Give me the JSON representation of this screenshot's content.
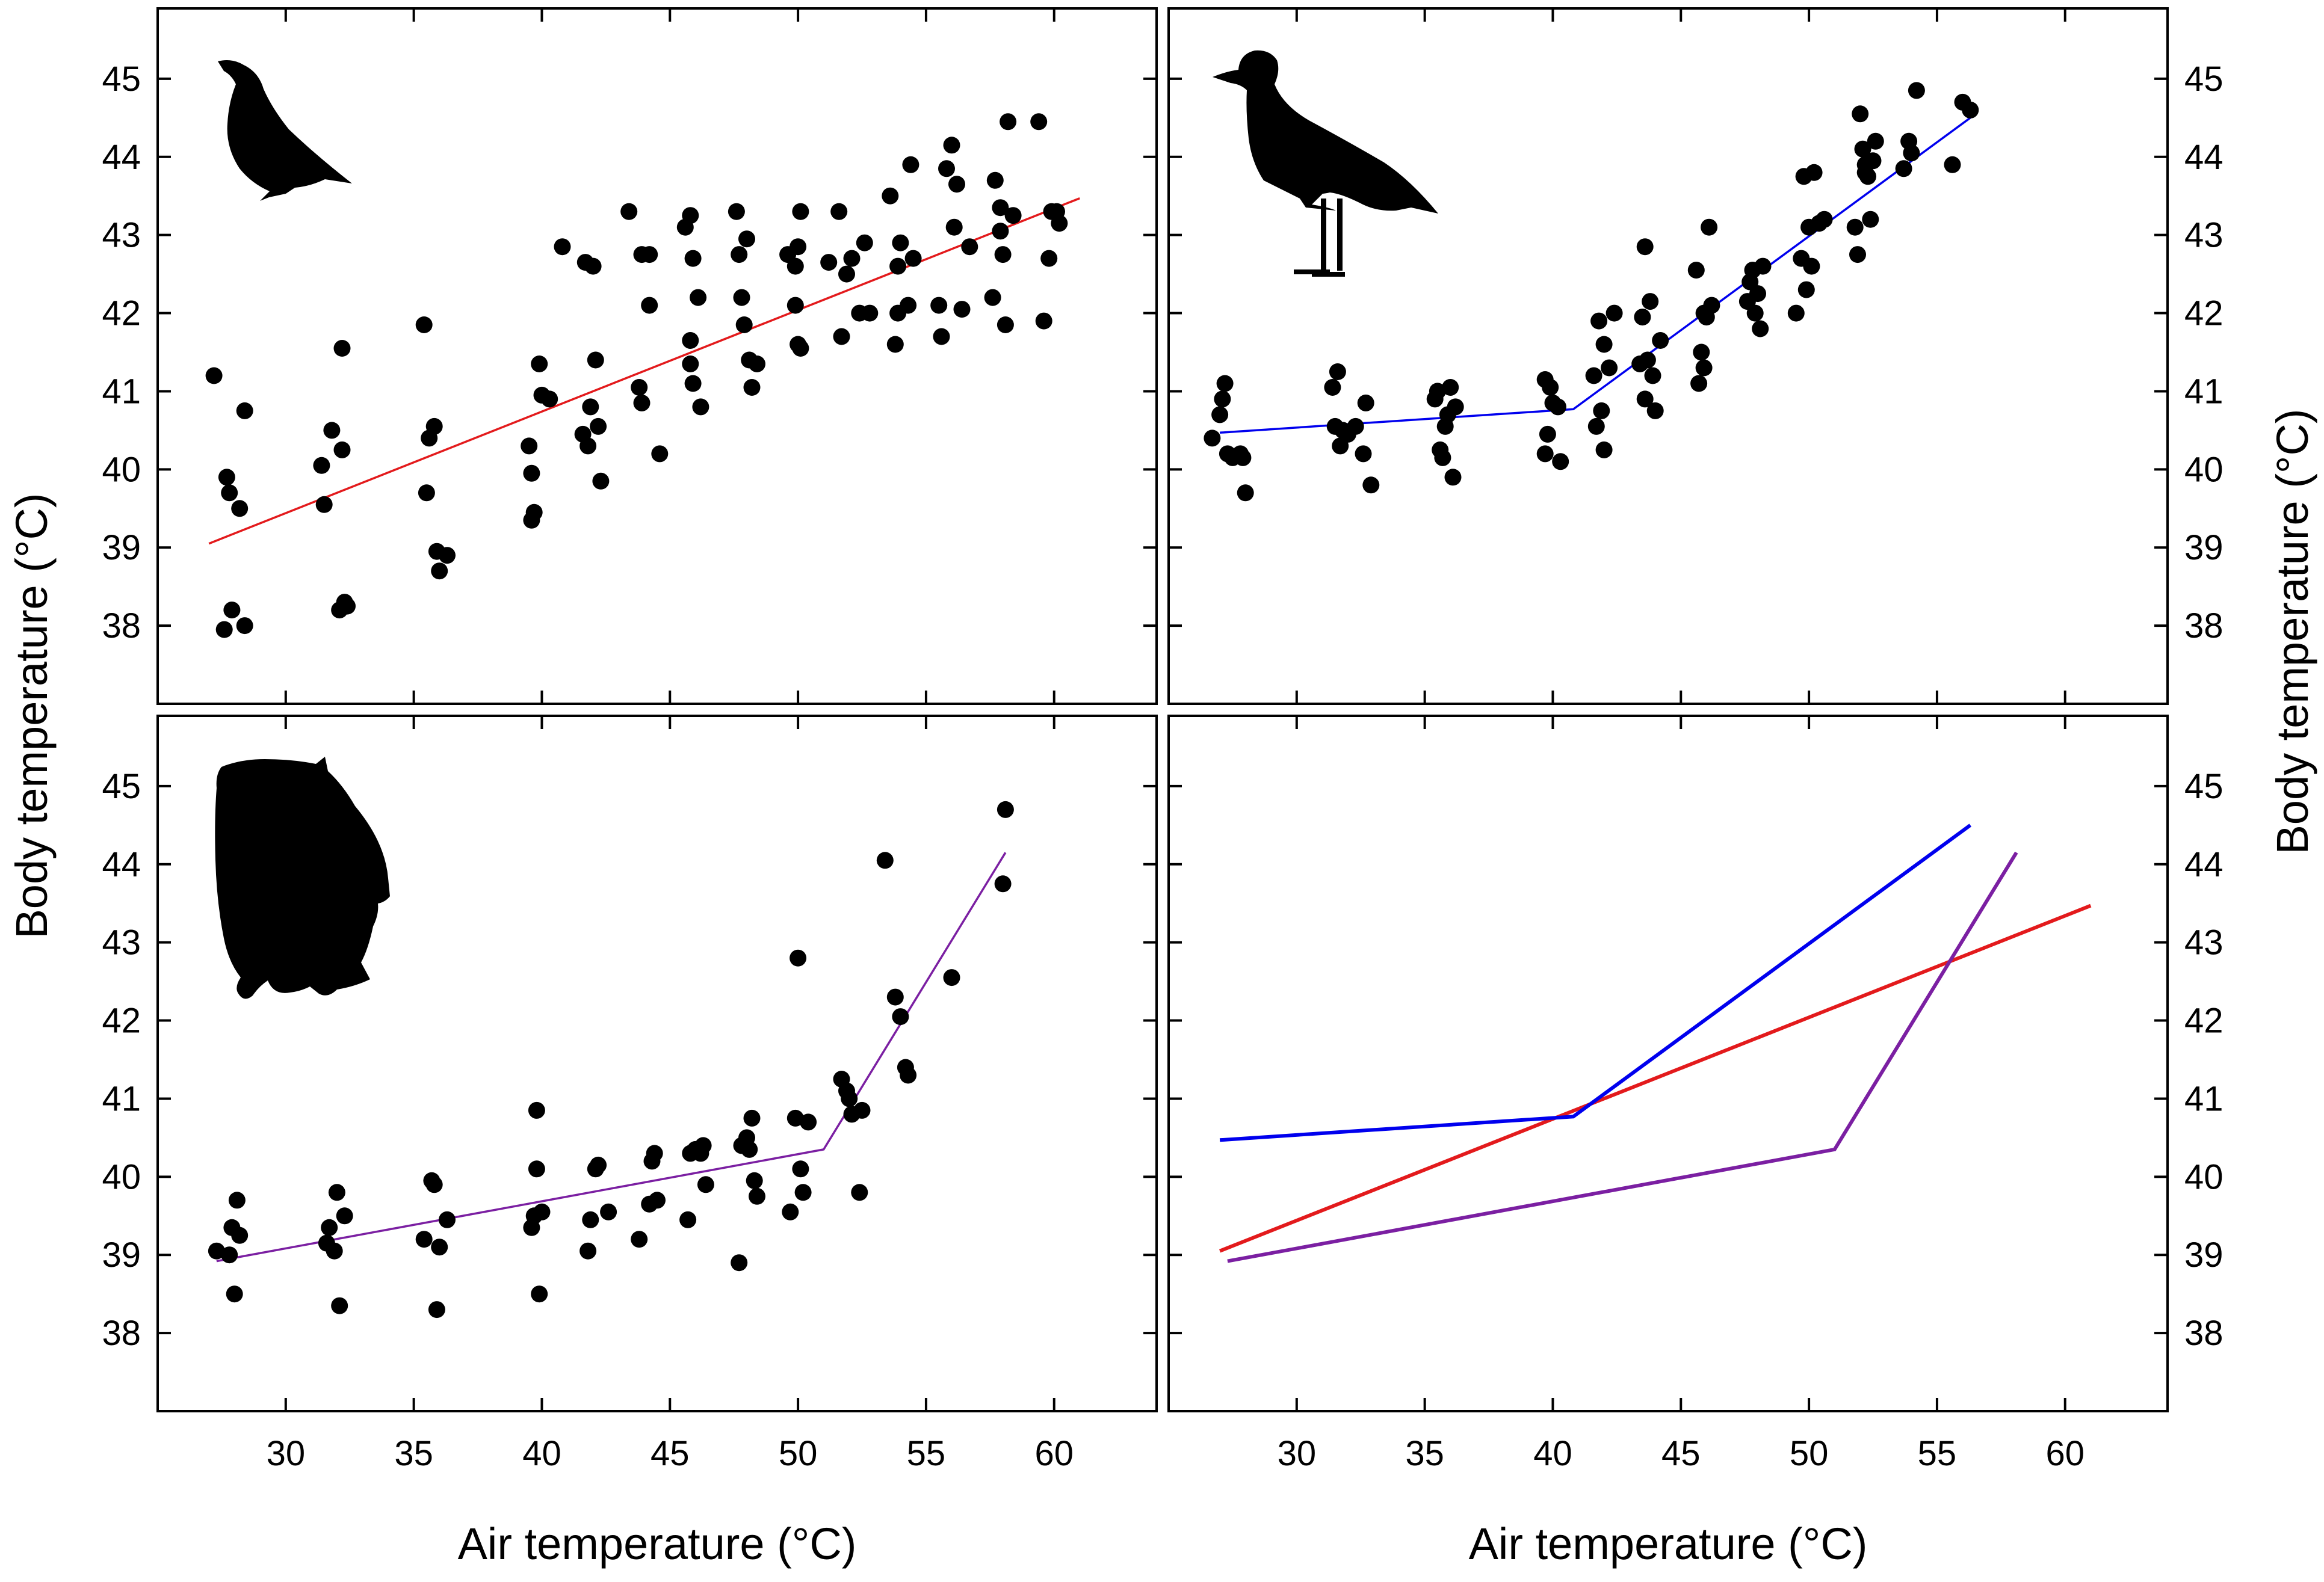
{
  "chart_data": [
    {
      "type": "scatter",
      "panel": "top-left",
      "silhouette": "grouse-bird-icon",
      "xlabel": "",
      "ylabel": "Body temperature (°C)",
      "xlim": [
        25,
        64
      ],
      "ylim": [
        37,
        45.9
      ],
      "xticks": [
        "30",
        "35",
        "40",
        "45",
        "50",
        "55",
        "60"
      ],
      "yticks": [
        "38",
        "39",
        "40",
        "41",
        "42",
        "43",
        "44",
        "45"
      ],
      "fit": {
        "name": "grouse",
        "color": "#e31a1c",
        "x": [
          27,
          61
        ],
        "y": [
          39.05,
          43.47
        ]
      },
      "points": [
        [
          27.2,
          41.2
        ],
        [
          27.7,
          39.9
        ],
        [
          27.8,
          39.7
        ],
        [
          28.2,
          39.5
        ],
        [
          28.4,
          40.75
        ],
        [
          27.6,
          37.95
        ],
        [
          27.9,
          38.2
        ],
        [
          28.4,
          38.0
        ],
        [
          31.4,
          40.05
        ],
        [
          31.5,
          39.55
        ],
        [
          31.8,
          40.5
        ],
        [
          32.2,
          41.55
        ],
        [
          32.2,
          40.25
        ],
        [
          32.1,
          38.2
        ],
        [
          32.3,
          38.3
        ],
        [
          32.4,
          38.25
        ],
        [
          35.4,
          41.85
        ],
        [
          35.6,
          40.4
        ],
        [
          35.8,
          40.55
        ],
        [
          35.5,
          39.7
        ],
        [
          35.9,
          38.95
        ],
        [
          36.0,
          38.7
        ],
        [
          36.3,
          38.9
        ],
        [
          39.5,
          40.3
        ],
        [
          39.6,
          39.95
        ],
        [
          39.6,
          39.35
        ],
        [
          39.7,
          39.45
        ],
        [
          39.9,
          41.35
        ],
        [
          40.0,
          40.95
        ],
        [
          40.3,
          40.9
        ],
        [
          40.8,
          42.85
        ],
        [
          41.6,
          40.45
        ],
        [
          41.9,
          40.8
        ],
        [
          41.8,
          40.3
        ],
        [
          41.7,
          42.65
        ],
        [
          42.0,
          42.6
        ],
        [
          42.1,
          41.4
        ],
        [
          42.2,
          40.55
        ],
        [
          42.3,
          39.85
        ],
        [
          43.4,
          43.3
        ],
        [
          43.8,
          41.05
        ],
        [
          43.9,
          40.85
        ],
        [
          44.2,
          42.75
        ],
        [
          44.2,
          42.1
        ],
        [
          44.6,
          40.2
        ],
        [
          43.9,
          42.75
        ],
        [
          45.6,
          43.1
        ],
        [
          45.8,
          43.25
        ],
        [
          45.9,
          42.7
        ],
        [
          45.8,
          41.65
        ],
        [
          45.8,
          41.35
        ],
        [
          45.9,
          41.1
        ],
        [
          46.1,
          42.2
        ],
        [
          46.2,
          40.8
        ],
        [
          47.6,
          43.3
        ],
        [
          47.7,
          42.75
        ],
        [
          47.8,
          42.2
        ],
        [
          48.0,
          42.95
        ],
        [
          47.9,
          41.85
        ],
        [
          48.2,
          41.05
        ],
        [
          48.4,
          41.35
        ],
        [
          48.1,
          41.4
        ],
        [
          49.6,
          42.75
        ],
        [
          49.9,
          42.6
        ],
        [
          49.9,
          42.1
        ],
        [
          50.0,
          41.6
        ],
        [
          50.1,
          41.55
        ],
        [
          50.1,
          43.3
        ],
        [
          50.0,
          42.85
        ],
        [
          51.2,
          42.65
        ],
        [
          51.6,
          43.3
        ],
        [
          51.9,
          42.5
        ],
        [
          51.7,
          41.7
        ],
        [
          52.1,
          42.7
        ],
        [
          52.4,
          42.0
        ],
        [
          52.6,
          42.9
        ],
        [
          52.8,
          42.0
        ],
        [
          53.6,
          43.5
        ],
        [
          53.9,
          42.6
        ],
        [
          53.9,
          42.0
        ],
        [
          53.8,
          41.6
        ],
        [
          54.0,
          42.9
        ],
        [
          54.3,
          42.1
        ],
        [
          54.4,
          43.9
        ],
        [
          54.5,
          42.7
        ],
        [
          55.5,
          42.1
        ],
        [
          55.6,
          41.7
        ],
        [
          55.8,
          43.85
        ],
        [
          56.0,
          44.15
        ],
        [
          56.1,
          43.1
        ],
        [
          56.2,
          43.65
        ],
        [
          56.4,
          42.05
        ],
        [
          56.7,
          42.85
        ],
        [
          57.6,
          42.2
        ],
        [
          57.7,
          43.7
        ],
        [
          57.9,
          43.35
        ],
        [
          57.9,
          43.05
        ],
        [
          58.0,
          42.75
        ],
        [
          58.1,
          41.85
        ],
        [
          58.2,
          44.45
        ],
        [
          58.4,
          43.25
        ],
        [
          59.4,
          44.45
        ],
        [
          59.6,
          41.9
        ],
        [
          59.8,
          42.7
        ],
        [
          59.9,
          43.3
        ],
        [
          60.1,
          43.3
        ],
        [
          60.2,
          43.15
        ]
      ]
    },
    {
      "type": "scatter",
      "panel": "top-right",
      "silhouette": "plover-bird-icon",
      "xlabel": "",
      "ylabel": "Body temperature (°C)",
      "xlim": [
        25,
        64
      ],
      "ylim": [
        37,
        45.9
      ],
      "xticks": [
        "30",
        "35",
        "40",
        "45",
        "50",
        "55",
        "60"
      ],
      "yticks": [
        "38",
        "39",
        "40",
        "41",
        "42",
        "43",
        "44",
        "45"
      ],
      "fit": {
        "name": "plover",
        "color": "#0000ee",
        "x": [
          27,
          40.8,
          56.3
        ],
        "y": [
          40.47,
          40.77,
          44.5
        ]
      },
      "points": [
        [
          26.7,
          40.4
        ],
        [
          27.0,
          40.7
        ],
        [
          27.1,
          40.9
        ],
        [
          27.2,
          41.1
        ],
        [
          27.3,
          40.2
        ],
        [
          27.5,
          40.15
        ],
        [
          27.8,
          40.2
        ],
        [
          27.9,
          40.15
        ],
        [
          28.0,
          39.7
        ],
        [
          31.4,
          41.05
        ],
        [
          31.5,
          40.55
        ],
        [
          31.6,
          41.25
        ],
        [
          31.7,
          40.3
        ],
        [
          31.8,
          40.5
        ],
        [
          32.0,
          40.45
        ],
        [
          32.3,
          40.55
        ],
        [
          32.6,
          40.2
        ],
        [
          32.7,
          40.85
        ],
        [
          32.9,
          39.8
        ],
        [
          35.4,
          40.9
        ],
        [
          35.5,
          41.0
        ],
        [
          35.6,
          40.25
        ],
        [
          35.7,
          40.15
        ],
        [
          35.8,
          40.55
        ],
        [
          35.9,
          40.7
        ],
        [
          36.0,
          41.05
        ],
        [
          36.1,
          39.9
        ],
        [
          36.2,
          40.8
        ],
        [
          39.7,
          41.15
        ],
        [
          39.7,
          40.2
        ],
        [
          39.8,
          40.45
        ],
        [
          39.9,
          41.05
        ],
        [
          40.0,
          40.85
        ],
        [
          40.2,
          40.8
        ],
        [
          40.3,
          40.1
        ],
        [
          41.6,
          41.2
        ],
        [
          41.7,
          40.55
        ],
        [
          41.8,
          41.9
        ],
        [
          41.9,
          40.75
        ],
        [
          42.0,
          41.6
        ],
        [
          42.0,
          40.25
        ],
        [
          42.2,
          41.3
        ],
        [
          42.4,
          42.0
        ],
        [
          43.4,
          41.35
        ],
        [
          43.5,
          41.95
        ],
        [
          43.6,
          42.85
        ],
        [
          43.7,
          41.4
        ],
        [
          43.8,
          42.15
        ],
        [
          43.9,
          41.2
        ],
        [
          44.0,
          40.75
        ],
        [
          43.6,
          40.9
        ],
        [
          44.2,
          41.65
        ],
        [
          45.6,
          42.55
        ],
        [
          45.7,
          41.1
        ],
        [
          45.8,
          41.5
        ],
        [
          45.9,
          42.0
        ],
        [
          45.9,
          41.3
        ],
        [
          46.0,
          41.95
        ],
        [
          46.1,
          43.1
        ],
        [
          46.2,
          42.1
        ],
        [
          47.6,
          42.15
        ],
        [
          47.7,
          42.4
        ],
        [
          47.8,
          42.55
        ],
        [
          47.9,
          42.0
        ],
        [
          48.0,
          42.25
        ],
        [
          48.1,
          41.8
        ],
        [
          48.2,
          42.6
        ],
        [
          49.5,
          42.0
        ],
        [
          49.7,
          42.7
        ],
        [
          49.8,
          43.75
        ],
        [
          49.9,
          42.3
        ],
        [
          50.0,
          43.1
        ],
        [
          50.1,
          42.6
        ],
        [
          50.2,
          43.8
        ],
        [
          50.4,
          43.15
        ],
        [
          50.6,
          43.2
        ],
        [
          51.8,
          43.1
        ],
        [
          51.9,
          42.75
        ],
        [
          52.1,
          44.1
        ],
        [
          52.2,
          43.8
        ],
        [
          52.2,
          43.9
        ],
        [
          52.3,
          43.75
        ],
        [
          52.4,
          43.2
        ],
        [
          52.5,
          43.95
        ],
        [
          52.6,
          44.2
        ],
        [
          52.0,
          44.55
        ],
        [
          53.7,
          43.85
        ],
        [
          53.9,
          44.2
        ],
        [
          54.0,
          44.05
        ],
        [
          54.2,
          44.85
        ],
        [
          55.6,
          43.9
        ],
        [
          56.0,
          44.7
        ],
        [
          56.3,
          44.6
        ]
      ]
    },
    {
      "type": "scatter",
      "panel": "bottom-left",
      "silhouette": "owl-bird-icon",
      "xlabel": "Air temperature (°C)",
      "ylabel": "Body temperature (°C)",
      "xlim": [
        25,
        64
      ],
      "ylim": [
        37,
        45.9
      ],
      "xticks": [
        "30",
        "35",
        "40",
        "45",
        "50",
        "55",
        "60"
      ],
      "yticks": [
        "38",
        "39",
        "40",
        "41",
        "42",
        "43",
        "44",
        "45"
      ],
      "fit": {
        "name": "owl",
        "color": "#7b1fa2",
        "x": [
          27.3,
          51,
          58.1
        ],
        "y": [
          38.92,
          40.35,
          44.15
        ]
      },
      "points": [
        [
          27.3,
          39.05
        ],
        [
          27.8,
          39.0
        ],
        [
          27.9,
          39.35
        ],
        [
          28.0,
          38.5
        ],
        [
          28.1,
          39.7
        ],
        [
          28.2,
          39.25
        ],
        [
          31.6,
          39.15
        ],
        [
          31.7,
          39.35
        ],
        [
          31.9,
          39.05
        ],
        [
          32.0,
          39.8
        ],
        [
          32.1,
          38.35
        ],
        [
          32.3,
          39.5
        ],
        [
          35.4,
          39.2
        ],
        [
          35.7,
          39.95
        ],
        [
          35.8,
          39.9
        ],
        [
          35.9,
          38.3
        ],
        [
          36.0,
          39.1
        ],
        [
          36.3,
          39.45
        ],
        [
          39.6,
          39.35
        ],
        [
          39.7,
          39.5
        ],
        [
          39.8,
          40.1
        ],
        [
          39.8,
          40.85
        ],
        [
          39.9,
          38.5
        ],
        [
          40.0,
          39.55
        ],
        [
          41.8,
          39.05
        ],
        [
          41.9,
          39.45
        ],
        [
          42.1,
          40.1
        ],
        [
          42.2,
          40.15
        ],
        [
          42.6,
          39.55
        ],
        [
          43.8,
          39.2
        ],
        [
          44.2,
          39.65
        ],
        [
          44.3,
          40.2
        ],
        [
          44.4,
          40.3
        ],
        [
          44.5,
          39.7
        ],
        [
          45.7,
          39.45
        ],
        [
          45.8,
          40.3
        ],
        [
          46.0,
          40.35
        ],
        [
          46.2,
          40.3
        ],
        [
          46.3,
          40.4
        ],
        [
          46.4,
          39.9
        ],
        [
          47.7,
          38.9
        ],
        [
          47.8,
          40.4
        ],
        [
          48.0,
          40.5
        ],
        [
          48.1,
          40.35
        ],
        [
          48.2,
          40.75
        ],
        [
          48.3,
          39.95
        ],
        [
          48.4,
          39.75
        ],
        [
          49.7,
          39.55
        ],
        [
          49.9,
          40.75
        ],
        [
          50.0,
          42.8
        ],
        [
          50.1,
          40.1
        ],
        [
          50.2,
          39.8
        ],
        [
          50.4,
          40.7
        ],
        [
          51.7,
          41.25
        ],
        [
          51.9,
          41.1
        ],
        [
          52.0,
          41.0
        ],
        [
          52.1,
          40.8
        ],
        [
          52.4,
          39.8
        ],
        [
          52.5,
          40.85
        ],
        [
          53.4,
          44.05
        ],
        [
          53.8,
          42.3
        ],
        [
          54.0,
          42.05
        ],
        [
          54.2,
          41.4
        ],
        [
          54.3,
          41.3
        ],
        [
          56.0,
          42.55
        ],
        [
          58.0,
          43.75
        ],
        [
          58.1,
          44.7
        ]
      ]
    },
    {
      "type": "line",
      "panel": "bottom-right",
      "xlabel": "Air temperature (°C)",
      "ylabel": "Body temperature (°C)",
      "xlim": [
        25,
        64
      ],
      "ylim": [
        37,
        45.9
      ],
      "xticks": [
        "30",
        "35",
        "40",
        "45",
        "50",
        "55",
        "60"
      ],
      "yticks": [
        "38",
        "39",
        "40",
        "41",
        "42",
        "43",
        "44",
        "45"
      ],
      "series": [
        {
          "name": "grouse",
          "color": "#e31a1c",
          "x": [
            27,
            61
          ],
          "y": [
            39.05,
            43.47
          ]
        },
        {
          "name": "plover",
          "color": "#0000ee",
          "x": [
            27,
            40.8,
            56.3
          ],
          "y": [
            40.47,
            40.77,
            44.5
          ]
        },
        {
          "name": "owl",
          "color": "#7b1fa2",
          "x": [
            27.3,
            51,
            58.1
          ],
          "y": [
            38.92,
            40.35,
            44.15
          ]
        }
      ]
    }
  ],
  "labels": {
    "body_temperature": "Body temperature (°C)",
    "air_temperature": "Air temperature (°C)"
  }
}
